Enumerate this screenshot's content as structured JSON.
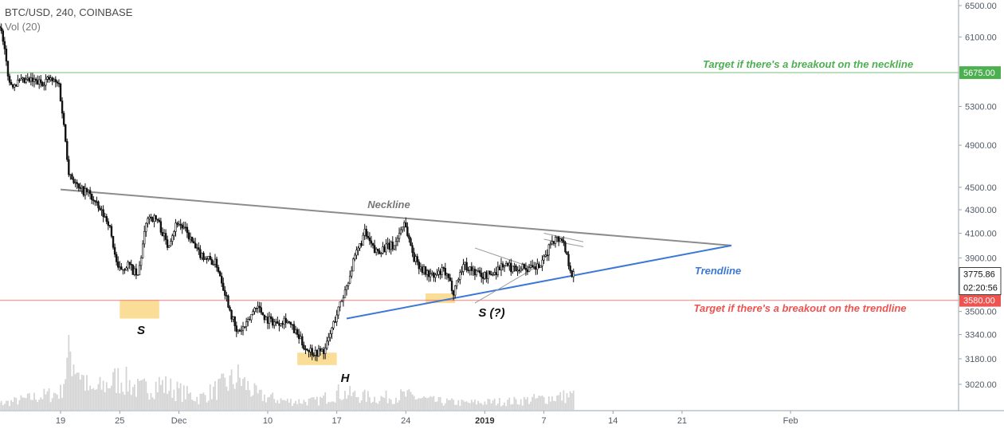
{
  "header": {
    "symbol": "BTC/USD, 240, COINBASE",
    "volume_label": "Vol (20)"
  },
  "colors": {
    "candle": "#111111",
    "volume": "#d4d4d4",
    "neckline": "#8c8c8c",
    "trendline": "#3b78d8",
    "target_green": "#4caf50",
    "target_red": "#ef5350",
    "highlight": "#f5c242",
    "last_price_bg": "#111111",
    "axis": "#4f5a66"
  },
  "annotations": {
    "neckline_label": "Neckline",
    "trendline_label": "Trendline",
    "target_neckline": "Target if there's a breakout on the neckline",
    "target_trendline": "Target if there's a breakout on the trendline",
    "shoulder_left": "S",
    "head": "H",
    "shoulder_right": "S (?)"
  },
  "chart_data": {
    "type": "candlestick",
    "y_scale": "log",
    "ylim": [
      2900,
      6650
    ],
    "xlim": [
      "Nov 11 2018",
      "Feb 14 2019"
    ],
    "y_ticks": [
      "6500.00",
      "6100.00",
      "5300.00",
      "4900.00",
      "4500.00",
      "4300.00",
      "4100.00",
      "3900.00",
      "3500.00",
      "3340.00",
      "3180.00",
      "3020.00"
    ],
    "x_ticks": [
      {
        "label": "19",
        "date": "2018-11-19"
      },
      {
        "label": "25",
        "date": "2018-11-25"
      },
      {
        "label": "Dec",
        "date": "2018-12-01"
      },
      {
        "label": "10",
        "date": "2018-12-10"
      },
      {
        "label": "17",
        "date": "2018-12-17"
      },
      {
        "label": "24",
        "date": "2018-12-24"
      },
      {
        "label": "2019",
        "date": "2019-01-01",
        "bold": true
      },
      {
        "label": "7",
        "date": "2019-01-07"
      },
      {
        "label": "14",
        "date": "2019-01-14"
      },
      {
        "label": "21",
        "date": "2019-01-21"
      },
      {
        "label": "Feb",
        "date": "2019-02-01"
      }
    ],
    "price_path": [
      [
        "2018-11-11",
        6320
      ],
      [
        "2018-11-12",
        6290
      ],
      [
        "2018-11-13",
        6260
      ],
      [
        "2018-11-14",
        5550
      ],
      [
        "2018-11-15",
        5560
      ],
      [
        "2018-11-16",
        5580
      ],
      [
        "2018-11-17",
        5560
      ],
      [
        "2018-11-18",
        5600
      ],
      [
        "2018-11-19",
        5540
      ],
      [
        "2018-11-20",
        4650
      ],
      [
        "2018-11-21",
        4480
      ],
      [
        "2018-11-22",
        4450
      ],
      [
        "2018-11-23",
        4310
      ],
      [
        "2018-11-24",
        4200
      ],
      [
        "2018-11-25",
        3800
      ],
      [
        "2018-11-26",
        3850
      ],
      [
        "2018-11-27",
        3750
      ],
      [
        "2018-11-28",
        4250
      ],
      [
        "2018-11-29",
        4210
      ],
      [
        "2018-11-30",
        4000
      ],
      [
        "2018-12-01",
        4200
      ],
      [
        "2018-12-02",
        4100
      ],
      [
        "2018-12-03",
        3950
      ],
      [
        "2018-12-04",
        3900
      ],
      [
        "2018-12-05",
        3850
      ],
      [
        "2018-12-06",
        3600
      ],
      [
        "2018-12-07",
        3350
      ],
      [
        "2018-12-08",
        3400
      ],
      [
        "2018-12-09",
        3550
      ],
      [
        "2018-12-10",
        3450
      ],
      [
        "2018-12-11",
        3420
      ],
      [
        "2018-12-12",
        3450
      ],
      [
        "2018-12-13",
        3350
      ],
      [
        "2018-12-14",
        3250
      ],
      [
        "2018-12-15",
        3220
      ],
      [
        "2018-12-16",
        3240
      ],
      [
        "2018-12-17",
        3450
      ],
      [
        "2018-12-18",
        3650
      ],
      [
        "2018-12-19",
        3900
      ],
      [
        "2018-12-20",
        4100
      ],
      [
        "2018-12-21",
        3950
      ],
      [
        "2018-12-22",
        3980
      ],
      [
        "2018-12-23",
        4000
      ],
      [
        "2018-12-24",
        4200
      ],
      [
        "2018-12-25",
        3900
      ],
      [
        "2018-12-26",
        3800
      ],
      [
        "2018-12-27",
        3750
      ],
      [
        "2018-12-28",
        3800
      ],
      [
        "2018-12-29",
        3650
      ],
      [
        "2018-12-30",
        3850
      ],
      [
        "2018-12-31",
        3800
      ],
      [
        "2019-01-01",
        3760
      ],
      [
        "2019-01-02",
        3780
      ],
      [
        "2019-01-03",
        3850
      ],
      [
        "2019-01-04",
        3820
      ],
      [
        "2019-01-05",
        3830
      ],
      [
        "2019-01-06",
        3810
      ],
      [
        "2019-01-07",
        3850
      ],
      [
        "2019-01-08",
        4050
      ],
      [
        "2019-01-09",
        4060
      ],
      [
        "2019-01-10",
        3775.86
      ]
    ],
    "volume_path": [
      [
        "2018-11-11",
        6
      ],
      [
        "2018-11-14",
        14
      ],
      [
        "2018-11-19",
        30
      ],
      [
        "2018-11-20",
        100
      ],
      [
        "2018-11-22",
        30
      ],
      [
        "2018-11-25",
        55
      ],
      [
        "2018-11-27",
        35
      ],
      [
        "2018-11-29",
        45
      ],
      [
        "2018-12-03",
        20
      ],
      [
        "2018-12-07",
        55
      ],
      [
        "2018-12-09",
        25
      ],
      [
        "2018-12-12",
        15
      ],
      [
        "2018-12-15",
        15
      ],
      [
        "2018-12-17",
        30
      ],
      [
        "2018-12-19",
        25
      ],
      [
        "2018-12-21",
        20
      ],
      [
        "2018-12-24",
        25
      ],
      [
        "2018-12-27",
        15
      ],
      [
        "2018-12-30",
        12
      ],
      [
        "2019-01-04",
        15
      ],
      [
        "2019-01-07",
        20
      ],
      [
        "2019-01-10",
        25
      ]
    ],
    "horizontal_levels": [
      {
        "value": 5675.0,
        "label": "5675.00",
        "color_key": "target_green"
      },
      {
        "value": 3580.0,
        "label": "3580.00",
        "color_key": "target_red"
      }
    ],
    "neckline": [
      [
        "2018-11-19",
        4480
      ],
      [
        "2019-01-26",
        4000
      ]
    ],
    "trendline": [
      [
        "2018-12-18",
        3450
      ],
      [
        "2019-01-26",
        4000
      ]
    ],
    "triangle_upper": [
      [
        "2018-12-31",
        3980
      ],
      [
        "2019-01-06",
        3820
      ]
    ],
    "triangle_lower": [
      [
        "2018-12-31",
        3560
      ],
      [
        "2019-01-06",
        3820
      ]
    ],
    "flag_upper": [
      [
        "2019-01-07",
        4100
      ],
      [
        "2019-01-11",
        4030
      ]
    ],
    "flag_lower": [
      [
        "2019-01-07",
        4050
      ],
      [
        "2019-01-11",
        3990
      ]
    ],
    "highlights": [
      {
        "from": "2018-11-25",
        "to": "2018-11-29",
        "low": 3450,
        "high": 3580
      },
      {
        "from": "2018-12-13",
        "to": "2018-12-17",
        "low": 3140,
        "high": 3220
      },
      {
        "from": "2018-12-26",
        "to": "2018-12-29",
        "low": 3560,
        "high": 3630
      }
    ],
    "last_price": "3775.86",
    "countdown": "02:20:56"
  }
}
